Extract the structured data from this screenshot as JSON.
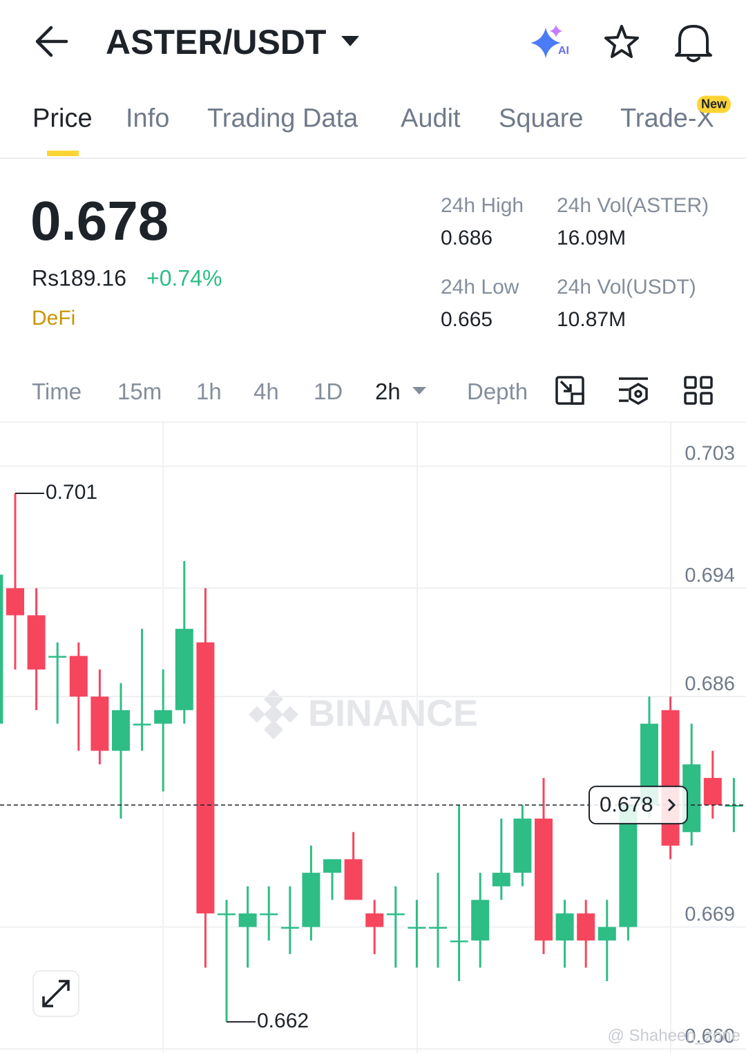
{
  "header": {
    "pair": "ASTER/USDT"
  },
  "tabs": {
    "items": [
      "Price",
      "Info",
      "Trading Data",
      "Audit",
      "Square",
      "Trade-X"
    ],
    "badge": "New"
  },
  "ticker": {
    "last": "0.678",
    "fiat": "Rs189.16",
    "change": "+0.74%",
    "tag": "DeFi",
    "stats": [
      {
        "label": "24h High",
        "value": "0.686"
      },
      {
        "label": "24h Vol(ASTER)",
        "value": "16.09M"
      },
      {
        "label": "24h Low",
        "value": "0.665"
      },
      {
        "label": "24h Vol(USDT)",
        "value": "10.87M"
      }
    ]
  },
  "intervals": {
    "items": [
      "Time",
      "15m",
      "1h",
      "4h",
      "1D",
      "2h",
      "Depth"
    ]
  },
  "chart_data": {
    "type": "candlestick",
    "watermark": "BINANCE",
    "credit": "@ Shaheen_zone",
    "up_color": "#2ebd85",
    "down_color": "#f6465d",
    "open": [
      0.684,
      0.694,
      0.692,
      0.689,
      0.689,
      0.686,
      0.682,
      0.684,
      0.684,
      0.685,
      0.69,
      0.67,
      0.669,
      0.67,
      0.669,
      0.669,
      0.673,
      0.674,
      0.67,
      0.67,
      0.669,
      0.669,
      0.668,
      0.668,
      0.672,
      0.673,
      0.677,
      0.668,
      0.67,
      0.668,
      0.669,
      0.678,
      0.685,
      0.676,
      0.68,
      0.678
    ],
    "high": [
      0.695,
      0.701,
      0.694,
      0.69,
      0.69,
      0.688,
      0.687,
      0.691,
      0.688,
      0.696,
      0.694,
      0.671,
      0.672,
      0.672,
      0.672,
      0.675,
      0.674,
      0.676,
      0.671,
      0.672,
      0.671,
      0.673,
      0.678,
      0.673,
      0.677,
      0.678,
      0.68,
      0.671,
      0.671,
      0.671,
      0.678,
      0.686,
      0.686,
      0.684,
      0.682,
      0.68
    ],
    "low": [
      0.684,
      0.688,
      0.685,
      0.684,
      0.682,
      0.681,
      0.677,
      0.682,
      0.679,
      0.684,
      0.666,
      0.662,
      0.666,
      0.668,
      0.667,
      0.668,
      0.671,
      0.671,
      0.667,
      0.666,
      0.666,
      0.666,
      0.665,
      0.666,
      0.671,
      0.672,
      0.667,
      0.666,
      0.666,
      0.665,
      0.668,
      0.677,
      0.674,
      0.675,
      0.677,
      0.676
    ],
    "close": [
      0.695,
      0.692,
      0.688,
      0.689,
      0.686,
      0.682,
      0.685,
      0.684,
      0.685,
      0.691,
      0.67,
      0.67,
      0.67,
      0.67,
      0.669,
      0.673,
      0.674,
      0.671,
      0.669,
      0.67,
      0.669,
      0.669,
      0.668,
      0.671,
      0.673,
      0.677,
      0.668,
      0.67,
      0.668,
      0.669,
      0.678,
      0.684,
      0.675,
      0.681,
      0.678,
      0.678
    ],
    "ylim": [
      0.6597,
      0.7062
    ],
    "yticks": [
      0.703,
      0.694,
      0.686,
      0.669,
      {
        "value": 0.66,
        "label": "0.660"
      }
    ],
    "grid": true,
    "max_marker": 0.701,
    "min_marker": 0.662,
    "last_price": 0.678
  }
}
